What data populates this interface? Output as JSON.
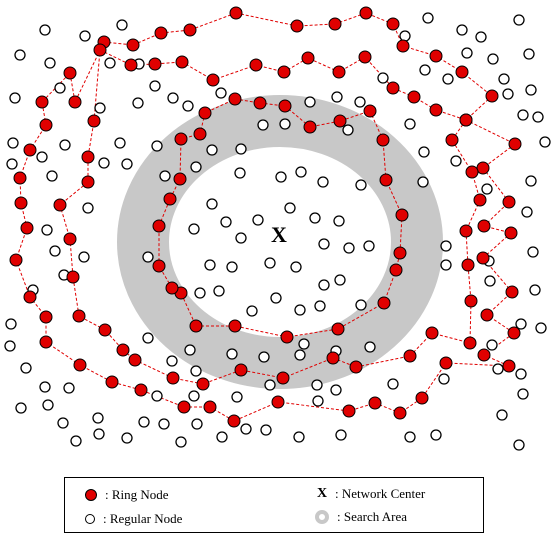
{
  "center_label": "X",
  "colors": {
    "ring_fill": "#e00000",
    "ring_link": "#e00000",
    "search_area": "#c8c8c8",
    "regular_fill": "#ffffff",
    "stroke": "#000000"
  },
  "legend": {
    "ring_node": ": Ring Node",
    "regular_node": ": Regular Node",
    "network_center_symbol": "X",
    "network_center": ": Network Center",
    "search_area": ": Search Area"
  }
}
